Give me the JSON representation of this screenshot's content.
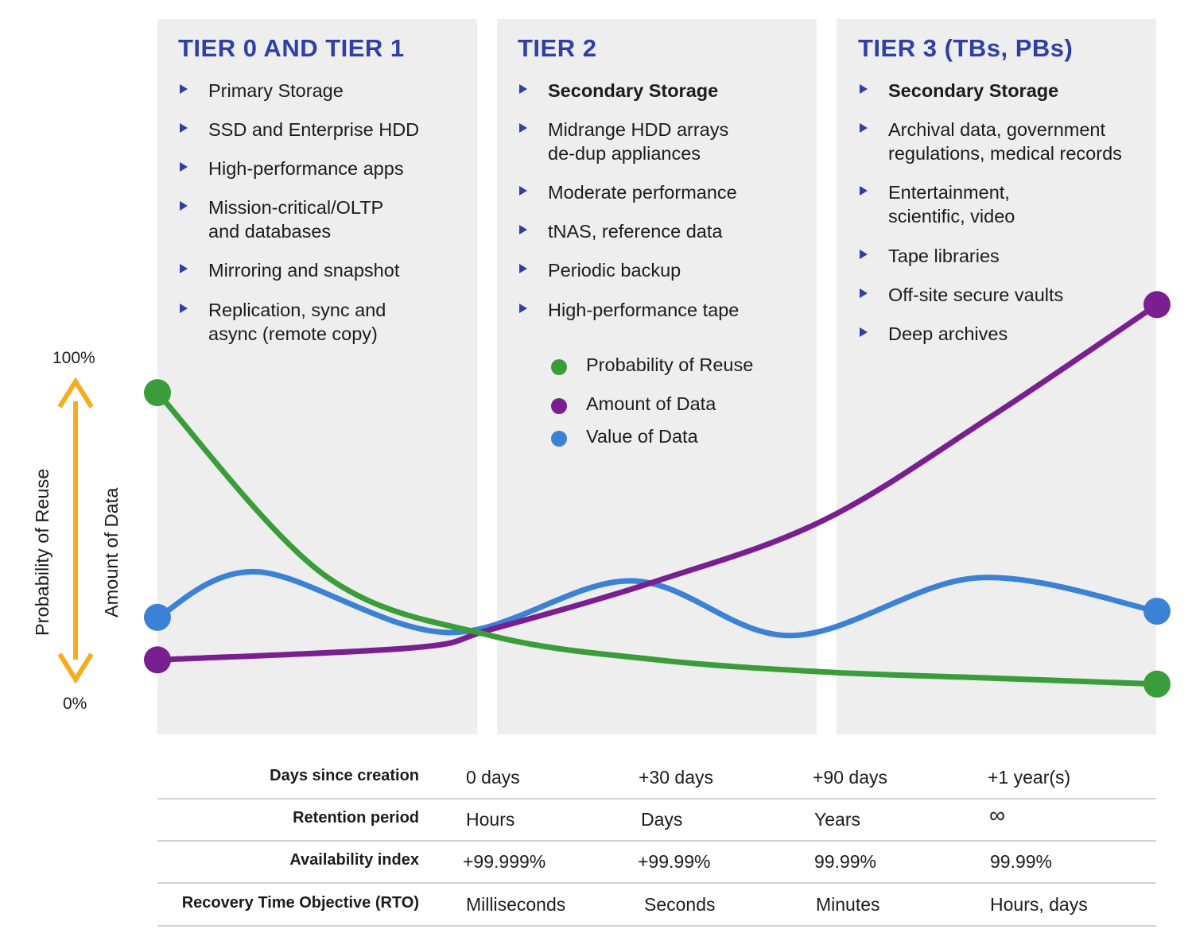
{
  "tiers": [
    {
      "title": "TIER 0 AND TIER 1",
      "items": [
        {
          "lines": [
            "Primary Storage"
          ],
          "bold": false
        },
        {
          "lines": [
            "SSD and Enterprise HDD"
          ],
          "bold": false
        },
        {
          "lines": [
            "High-performance apps"
          ],
          "bold": false
        },
        {
          "lines": [
            "Mission-critical/OLTP",
            "and databases"
          ],
          "bold": false
        },
        {
          "lines": [
            "Mirroring and snapshot"
          ],
          "bold": false
        },
        {
          "lines": [
            "Replication, sync and",
            "async (remote copy)"
          ],
          "bold": false
        }
      ]
    },
    {
      "title": "TIER 2",
      "items": [
        {
          "lines": [
            "Secondary Storage"
          ],
          "bold": true
        },
        {
          "lines": [
            "Midrange HDD arrays",
            "de-dup appliances"
          ],
          "bold": false
        },
        {
          "lines": [
            "Moderate performance"
          ],
          "bold": false
        },
        {
          "lines": [
            "tNAS, reference data"
          ],
          "bold": false
        },
        {
          "lines": [
            "Periodic backup"
          ],
          "bold": false
        },
        {
          "lines": [
            "High-performance tape"
          ],
          "bold": false
        }
      ]
    },
    {
      "title": "TIER 3 (TBs, PBs)",
      "items": [
        {
          "lines": [
            "Secondary Storage"
          ],
          "bold": true
        },
        {
          "lines": [
            "Archival data, government",
            "regulations, medical records"
          ],
          "bold": false
        },
        {
          "lines": [
            "Entertainment,",
            "scientific, video"
          ],
          "bold": false
        },
        {
          "lines": [
            "Tape libraries"
          ],
          "bold": false
        },
        {
          "lines": [
            "Off-site secure vaults"
          ],
          "bold": false
        },
        {
          "lines": [
            "Deep archives"
          ],
          "bold": false
        }
      ]
    }
  ],
  "colors": {
    "title": "#2e3fa6",
    "green": "#3a9d3a",
    "purple": "#7a1f8f",
    "blue": "#3b82d6",
    "arrow": "#f5ad1b",
    "panel": "#eeeeee"
  },
  "chart_data": {
    "type": "line",
    "x_range": [
      0,
      3
    ],
    "ylim": [
      0,
      100
    ],
    "y_tick_labels": [
      "100%",
      "0%"
    ],
    "y_axis_labels": [
      "Probability of Reuse",
      "Amount of Data"
    ],
    "legend_position": "center",
    "series": [
      {
        "name": "Probability of Reuse",
        "color": "#3a9d3a",
        "points": [
          [
            0,
            95
          ],
          [
            0.5,
            35
          ],
          [
            1,
            15
          ],
          [
            1.5,
            7
          ],
          [
            2,
            3
          ],
          [
            2.5,
            1
          ],
          [
            3,
            -1
          ]
        ]
      },
      {
        "name": "Amount of Data",
        "color": "#7a1f8f",
        "points": [
          [
            0,
            7
          ],
          [
            0.77,
            11
          ],
          [
            1,
            17
          ],
          [
            1.5,
            33
          ],
          [
            2,
            53
          ],
          [
            2.5,
            87
          ],
          [
            3,
            124
          ]
        ]
      },
      {
        "name": "Value of Data",
        "color": "#3b82d6",
        "points": [
          [
            0,
            21
          ],
          [
            0.3,
            36
          ],
          [
            0.87,
            16
          ],
          [
            1.42,
            33
          ],
          [
            1.9,
            15
          ],
          [
            2.46,
            34
          ],
          [
            3,
            23
          ]
        ]
      }
    ]
  },
  "table": {
    "rows": [
      {
        "header": "Days since creation",
        "cells": [
          "0 days",
          "+30 days",
          "+90 days",
          "+1 year(s)"
        ]
      },
      {
        "header": "Retention period",
        "cells": [
          "Hours",
          "Days",
          "Years",
          "∞"
        ]
      },
      {
        "header": "Availability index",
        "cells": [
          "+99.999%",
          "+99.99%",
          "99.99%",
          "99.99%"
        ]
      },
      {
        "header": "Recovery Time Objective (RTO)",
        "cells": [
          "Milliseconds",
          "Seconds",
          "Minutes",
          "Hours, days"
        ]
      }
    ]
  }
}
